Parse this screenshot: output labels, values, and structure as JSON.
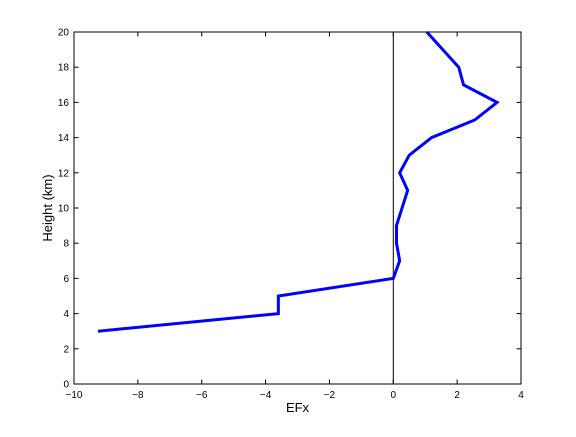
{
  "chart_data": {
    "type": "line",
    "xlabel": "EFx",
    "ylabel": "Height (km)",
    "xlim": [
      -10,
      4
    ],
    "ylim": [
      0,
      20
    ],
    "x_ticks": [
      -10,
      -8,
      -6,
      -4,
      -2,
      0,
      2,
      4
    ],
    "y_ticks": [
      0,
      2,
      4,
      6,
      8,
      10,
      12,
      14,
      16,
      18,
      20
    ],
    "x_tick_labels": [
      "−10",
      "−8",
      "−6",
      "−4",
      "−2",
      "0",
      "2",
      "4"
    ],
    "y_tick_labels": [
      "0",
      "2",
      "4",
      "6",
      "8",
      "10",
      "12",
      "14",
      "16",
      "18",
      "20"
    ],
    "grid": false,
    "reference_line_x": 0,
    "series": [
      {
        "color": "#0000ff",
        "x": [
          -9.25,
          -3.6,
          -3.6,
          0,
          0.2,
          0.1,
          0.1,
          0.45,
          0.2,
          0.5,
          1.2,
          2.55,
          3.25,
          2.2,
          2.05,
          1.05
        ],
        "y": [
          3,
          4,
          5,
          6,
          7,
          8,
          9,
          11,
          12,
          13,
          14,
          15,
          16,
          17,
          18,
          20
        ]
      }
    ],
    "reference_line_color": "#000000"
  }
}
